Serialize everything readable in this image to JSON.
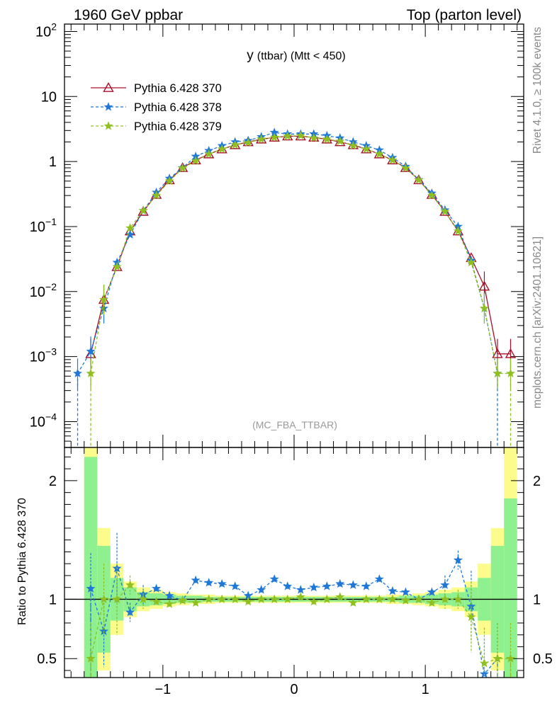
{
  "header": {
    "left_label": "1960 GeV ppbar",
    "right_label": "Top (parton level)"
  },
  "side_labels": {
    "rivet": "Rivet 4.1.0, ≥ 100k events",
    "mcplots": "mcplots.cern.ch [arXiv:2401.10621]"
  },
  "chart_data": [
    {
      "type": "line",
      "title": "y (ttbar) (Mtt < 450)",
      "title_main": "y",
      "title_sub": "(ttbar) (Mtt < 450)",
      "analysis_tag": "(MC_FBA_TTBAR)",
      "xlabel": "",
      "ylabel": "",
      "xlim": [
        -1.75,
        1.75
      ],
      "ylim": [
        4e-05,
        130
      ],
      "yscale": "log",
      "y_ticks": [
        {
          "value": 100,
          "base": "10",
          "exp": "2"
        },
        {
          "value": 10,
          "base": "10",
          "exp": ""
        },
        {
          "value": 1,
          "base": "1",
          "exp": ""
        },
        {
          "value": 0.1,
          "base": "10",
          "exp": "−1"
        },
        {
          "value": 0.01,
          "base": "10",
          "exp": "−2"
        },
        {
          "value": 0.001,
          "base": "10",
          "exp": "−3"
        },
        {
          "value": 0.0001,
          "base": "10",
          "exp": "−4"
        }
      ],
      "legend_position": "top-left",
      "series": [
        {
          "name": "Pythia 6.428 370",
          "color": "#a8102a",
          "style": "solid",
          "marker": "triangle-open",
          "x": [
            -1.55,
            -1.45,
            -1.35,
            -1.25,
            -1.15,
            -1.05,
            -0.95,
            -0.85,
            -0.75,
            -0.65,
            -0.55,
            -0.45,
            -0.35,
            -0.25,
            -0.15,
            -0.05,
            0.05,
            0.15,
            0.25,
            0.35,
            0.45,
            0.55,
            0.65,
            0.75,
            0.85,
            0.95,
            1.05,
            1.15,
            1.25,
            1.35,
            1.45,
            1.55,
            1.65
          ],
          "values": [
            0.0011,
            0.0075,
            0.024,
            0.085,
            0.17,
            0.31,
            0.52,
            0.8,
            1.05,
            1.3,
            1.55,
            1.8,
            2.0,
            2.2,
            2.35,
            2.45,
            2.45,
            2.35,
            2.2,
            2.0,
            1.8,
            1.55,
            1.3,
            1.05,
            0.8,
            0.52,
            0.31,
            0.17,
            0.085,
            0.033,
            0.012,
            0.0011,
            0.0011
          ]
        },
        {
          "name": "Pythia 6.428 378",
          "color": "#1f78d8",
          "style": "dashed",
          "marker": "star",
          "x": [
            -1.65,
            -1.55,
            -1.45,
            -1.35,
            -1.25,
            -1.15,
            -1.05,
            -0.95,
            -0.85,
            -0.75,
            -0.65,
            -0.55,
            -0.45,
            -0.35,
            -0.25,
            -0.15,
            -0.05,
            0.05,
            0.15,
            0.25,
            0.35,
            0.45,
            0.55,
            0.65,
            0.75,
            0.85,
            0.95,
            1.05,
            1.15,
            1.25,
            1.35,
            1.45,
            1.55
          ],
          "values": [
            0.00055,
            0.0012,
            0.0055,
            0.028,
            0.075,
            0.175,
            0.335,
            0.55,
            0.8,
            1.2,
            1.47,
            1.75,
            2.0,
            2.1,
            2.4,
            2.8,
            2.65,
            2.65,
            2.65,
            2.5,
            2.3,
            2.0,
            1.75,
            1.5,
            1.15,
            0.84,
            0.525,
            0.325,
            0.18,
            0.1,
            0.03,
            0.0055,
            0.00055
          ]
        },
        {
          "name": "Pythia 6.428 379",
          "color": "#8fc01f",
          "style": "dashed",
          "marker": "star",
          "x": [
            -1.55,
            -1.45,
            -1.35,
            -1.25,
            -1.15,
            -1.05,
            -0.95,
            -0.85,
            -0.75,
            -0.65,
            -0.55,
            -0.45,
            -0.35,
            -0.25,
            -0.15,
            -0.05,
            0.05,
            0.15,
            0.25,
            0.35,
            0.45,
            0.55,
            0.65,
            0.75,
            0.85,
            0.95,
            1.05,
            1.15,
            1.25,
            1.35,
            1.45,
            1.55,
            1.65
          ],
          "values": [
            0.00055,
            0.0075,
            0.024,
            0.095,
            0.175,
            0.3,
            0.5,
            0.79,
            1.02,
            1.3,
            1.55,
            1.8,
            1.95,
            2.2,
            2.35,
            2.45,
            2.5,
            2.3,
            2.2,
            2.05,
            1.75,
            1.55,
            1.3,
            1.05,
            0.79,
            0.52,
            0.3,
            0.17,
            0.085,
            0.028,
            0.0055,
            0.00055,
            0.00055
          ]
        }
      ]
    },
    {
      "type": "line",
      "title": "",
      "xlabel": "",
      "ylabel": "Ratio to Pythia 6.428 370",
      "xlim": [
        -1.75,
        1.75
      ],
      "ylim": [
        0.34,
        2.28
      ],
      "y_ticks": [
        0.5,
        1,
        2
      ],
      "y_tick_labels": [
        "0.5",
        "1",
        "2"
      ],
      "x_ticks": [
        -1,
        0,
        1
      ],
      "x_tick_labels": [
        "−1",
        "0",
        "1"
      ],
      "reference_line": 1,
      "bands": {
        "x_edges": [
          -1.6,
          -1.5,
          -1.4,
          -1.3,
          -1.2,
          -1.1,
          -1.0,
          -0.9,
          -0.8,
          -0.7,
          -0.6,
          -0.5,
          -0.4,
          -0.3,
          -0.2,
          -0.1,
          0.0,
          0.1,
          0.2,
          0.3,
          0.4,
          0.5,
          0.6,
          0.7,
          0.8,
          0.9,
          1.0,
          1.1,
          1.2,
          1.3,
          1.4,
          1.5,
          1.6,
          1.7
        ],
        "stat_color": "#8ff08f",
        "total_color": "#fcfc8c",
        "stat_half_width": [
          1.2,
          0.45,
          0.18,
          0.1,
          0.06,
          0.05,
          0.04,
          0.03,
          0.03,
          0.02,
          0.02,
          0.02,
          0.02,
          0.02,
          0.02,
          0.02,
          0.02,
          0.02,
          0.02,
          0.02,
          0.02,
          0.02,
          0.02,
          0.02,
          0.03,
          0.03,
          0.04,
          0.05,
          0.06,
          0.1,
          0.18,
          0.45,
          0.85
        ],
        "total_half_width": [
          1.3,
          0.6,
          0.3,
          0.15,
          0.1,
          0.08,
          0.06,
          0.05,
          0.04,
          0.04,
          0.03,
          0.03,
          0.03,
          0.03,
          0.03,
          0.03,
          0.03,
          0.03,
          0.03,
          0.03,
          0.03,
          0.03,
          0.03,
          0.04,
          0.04,
          0.05,
          0.06,
          0.08,
          0.1,
          0.15,
          0.3,
          0.6,
          1.3
        ]
      },
      "series": [
        {
          "name": "Pythia 6.428 378",
          "color": "#1f78d8",
          "x": [
            -1.55,
            -1.45,
            -1.35,
            -1.25,
            -1.15,
            -1.05,
            -0.95,
            -0.85,
            -0.75,
            -0.65,
            -0.55,
            -0.45,
            -0.35,
            -0.25,
            -0.15,
            -0.05,
            0.05,
            0.15,
            0.25,
            0.35,
            0.45,
            0.55,
            0.65,
            0.75,
            0.85,
            0.95,
            1.05,
            1.15,
            1.25,
            1.35,
            1.45,
            1.55
          ],
          "values": [
            1.09,
            0.73,
            1.26,
            0.89,
            1.04,
            1.09,
            1.03,
            0.99,
            1.16,
            1.14,
            1.13,
            1.11,
            1.03,
            1.08,
            1.17,
            1.11,
            1.08,
            1.1,
            1.11,
            1.13,
            1.12,
            1.11,
            1.17,
            1.07,
            1.06,
            1.0,
            1.06,
            1.12,
            1.33,
            0.94,
            0.37,
            0.5
          ]
        },
        {
          "name": "Pythia 6.428 379",
          "color": "#8fc01f",
          "x": [
            -1.55,
            -1.45,
            -1.35,
            -1.25,
            -1.15,
            -1.05,
            -0.95,
            -0.85,
            -0.75,
            -0.65,
            -0.55,
            -0.45,
            -0.35,
            -0.25,
            -0.15,
            -0.05,
            0.05,
            0.15,
            0.25,
            0.35,
            0.45,
            0.55,
            0.65,
            0.75,
            0.85,
            0.95,
            1.05,
            1.15,
            1.25,
            1.35,
            1.45,
            1.55,
            1.65
          ],
          "values": [
            0.5,
            1.0,
            1.0,
            1.12,
            1.0,
            0.98,
            0.96,
            0.99,
            0.97,
            1.0,
            1.0,
            1.0,
            0.98,
            1.0,
            1.0,
            1.0,
            1.02,
            0.98,
            1.0,
            1.02,
            0.97,
            1.0,
            1.0,
            1.0,
            0.99,
            1.0,
            0.97,
            1.0,
            1.0,
            0.85,
            0.46,
            0.5,
            0.5
          ]
        }
      ]
    }
  ]
}
